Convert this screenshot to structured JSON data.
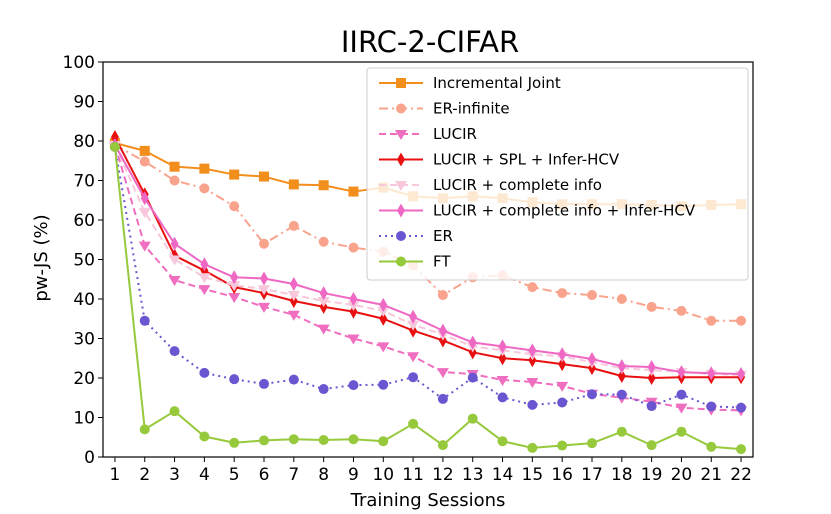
{
  "chart_data": {
    "type": "line",
    "title": "IIRC-2-CIFAR",
    "xlabel": "Training Sessions",
    "ylabel": "pw-JS (%)",
    "xlim": [
      0.6,
      22.4
    ],
    "ylim": [
      0,
      100
    ],
    "x": [
      1,
      2,
      3,
      4,
      5,
      6,
      7,
      8,
      9,
      10,
      11,
      12,
      13,
      14,
      15,
      16,
      17,
      18,
      19,
      20,
      21,
      22
    ],
    "yticks": [
      0,
      10,
      20,
      30,
      40,
      50,
      60,
      70,
      80,
      90,
      100
    ],
    "legend_position": "top-right",
    "series": [
      {
        "name": "Incremental Joint",
        "color": "#f28e1c",
        "marker": "square",
        "dash": "solid",
        "values": [
          79.5,
          77.5,
          73.5,
          73.0,
          71.5,
          71.0,
          69.0,
          68.8,
          67.2,
          68.2,
          66.0,
          65.5,
          66.0,
          65.5,
          64.5,
          64.0,
          64.0,
          64.0,
          63.8,
          63.5,
          63.8,
          64.0
        ]
      },
      {
        "name": "ER-infinite",
        "color": "#f9a38d",
        "marker": "circle",
        "dash": "dashdot",
        "values": [
          79.0,
          74.8,
          70.0,
          68.0,
          63.5,
          54.0,
          58.5,
          54.5,
          53.0,
          52.0,
          48.5,
          41.0,
          45.5,
          46.0,
          43.0,
          41.5,
          41.0,
          40.0,
          38.0,
          37.0,
          34.5,
          34.5
        ]
      },
      {
        "name": "LUCIR",
        "color": "#f06ec0",
        "marker": "triangle-down",
        "dash": "dashed",
        "values": [
          79.0,
          53.5,
          44.8,
          42.5,
          40.5,
          38.0,
          36.0,
          32.5,
          30.0,
          28.0,
          25.5,
          21.5,
          21.0,
          19.5,
          19.0,
          18.0,
          16.0,
          15.0,
          14.0,
          12.5,
          12.0,
          11.8
        ]
      },
      {
        "name": "LUCIR + SPL + Infer-HCV",
        "color": "#e81010",
        "marker": "diamond",
        "dash": "solid",
        "values": [
          81.0,
          66.5,
          51.0,
          47.2,
          43.0,
          41.5,
          39.5,
          38.0,
          36.8,
          35.0,
          32.0,
          29.5,
          26.5,
          25.0,
          24.5,
          23.5,
          22.5,
          20.5,
          20.0,
          20.2,
          20.2,
          20.2
        ]
      },
      {
        "name": "LUCIR + complete info",
        "color": "#f7c8dc",
        "marker": "triangle-down",
        "dash": "dashed",
        "values": [
          79.0,
          62.0,
          50.0,
          45.5,
          43.5,
          42.5,
          41.0,
          39.5,
          38.5,
          37.0,
          33.5,
          31.0,
          28.0,
          27.0,
          26.0,
          25.5,
          24.0,
          22.5,
          22.0,
          21.5,
          21.0,
          20.8
        ]
      },
      {
        "name": "LUCIR + complete info + Infer-HCV",
        "color": "#ee68c4",
        "marker": "diamond",
        "dash": "solid",
        "values": [
          79.0,
          65.5,
          54.0,
          48.8,
          45.5,
          45.2,
          43.8,
          41.5,
          40.0,
          38.5,
          35.5,
          32.0,
          29.0,
          28.0,
          27.0,
          26.0,
          24.8,
          23.0,
          22.8,
          21.5,
          21.2,
          21.0
        ]
      },
      {
        "name": "ER",
        "color": "#6a56d0",
        "marker": "circle",
        "dash": "dotted",
        "values": [
          78.5,
          34.5,
          26.8,
          21.3,
          19.7,
          18.5,
          19.6,
          17.2,
          18.2,
          18.3,
          20.2,
          14.7,
          20.1,
          15.1,
          13.2,
          13.8,
          15.9,
          15.8,
          12.9,
          15.8,
          12.8,
          12.5
        ]
      },
      {
        "name": "FT",
        "color": "#96c93c",
        "marker": "circle",
        "dash": "solid",
        "values": [
          78.5,
          7.0,
          11.6,
          5.2,
          3.6,
          4.2,
          4.5,
          4.3,
          4.5,
          4.0,
          8.4,
          3.0,
          9.7,
          4.0,
          2.3,
          2.9,
          3.5,
          6.4,
          3.0,
          6.4,
          2.6,
          2.0
        ]
      }
    ]
  }
}
